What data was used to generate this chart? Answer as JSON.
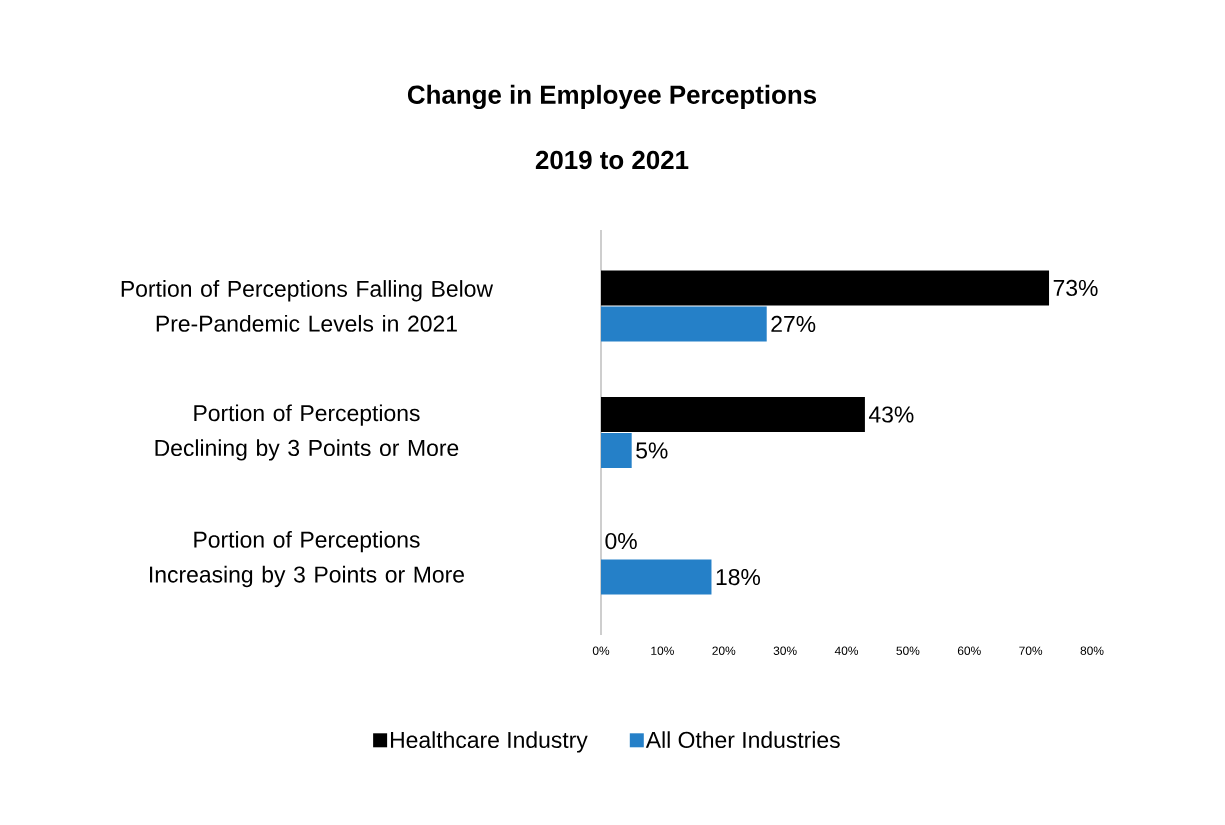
{
  "chart_data": {
    "type": "bar",
    "orientation": "horizontal",
    "title": "Change in Employee Perceptions",
    "subtitle": "2019 to 2021",
    "categories": [
      "Portion of Perceptions Falling Below Pre-Pandemic Levels in 2021",
      "Portion of Perceptions Declining by 3 Points or More",
      "Portion of Perceptions Increasing by 3 Points or More"
    ],
    "series": [
      {
        "name": "Healthcare Industry",
        "color": "#000000",
        "values": [
          73,
          43,
          0
        ],
        "value_labels": [
          "73%",
          "43%",
          "0%"
        ]
      },
      {
        "name": "All Other Industries",
        "color": "#2580c8",
        "values": [
          27,
          5,
          18
        ],
        "value_labels": [
          "27%",
          "5%",
          "18%"
        ]
      }
    ],
    "xlim": [
      0,
      80
    ],
    "xticks": [
      {
        "value": 0,
        "label": "0%"
      },
      {
        "value": 10,
        "label": "10%"
      },
      {
        "value": 20,
        "label": "20%"
      },
      {
        "value": 30,
        "label": "30%"
      },
      {
        "value": 40,
        "label": "40%"
      },
      {
        "value": 50,
        "label": "50%"
      },
      {
        "value": 60,
        "label": "60%"
      },
      {
        "value": 70,
        "label": "70%"
      },
      {
        "value": 80,
        "label": "80%"
      }
    ],
    "grid": false,
    "legend": "bottom"
  }
}
